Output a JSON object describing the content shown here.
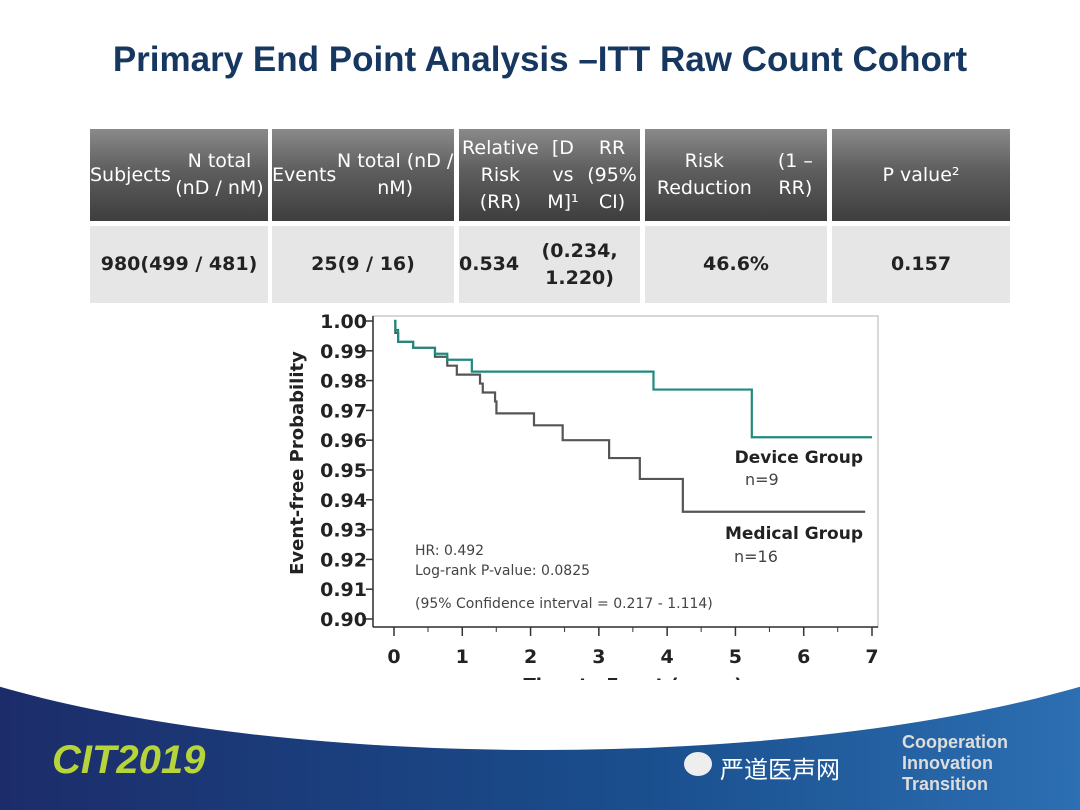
{
  "title": "Primary End Point Analysis –ITT Raw Count Cohort",
  "table": {
    "headers": [
      [
        "Subjects",
        "N total (nD / nM)"
      ],
      [
        "Events",
        "N total (nD / nM)"
      ],
      [
        "Relative Risk (RR)",
        "[D vs M]¹",
        "RR (95% CI)"
      ],
      [
        "Risk Reduction",
        "(1 – RR)"
      ],
      [
        "P value²"
      ]
    ],
    "row": [
      [
        "980",
        "(499 / 481)"
      ],
      [
        "25",
        "(9 / 16)"
      ],
      [
        "0.534",
        "(0.234, 1.220)"
      ],
      [
        "46.6%"
      ],
      [
        "0.157"
      ]
    ]
  },
  "chart_data": {
    "type": "line",
    "title": "",
    "xlabel": "Time to Event (years)",
    "ylabel": "Event-free Probability",
    "xlim": [
      0,
      7
    ],
    "ylim": [
      0.9,
      1.0
    ],
    "xticks": [
      "0",
      "1",
      "2",
      "3",
      "4",
      "5",
      "6",
      "7"
    ],
    "yticks": [
      "1.00",
      "0.99",
      "0.98",
      "0.97",
      "0.96",
      "0.95",
      "0.94",
      "0.93",
      "0.92",
      "0.91",
      "0.90"
    ],
    "series": [
      {
        "name": "Device Group",
        "n_label": "n=9",
        "color": "#1f8a7c",
        "steps": [
          [
            0,
            1.0
          ],
          [
            0.02,
            0.997
          ],
          [
            0.06,
            0.993
          ],
          [
            0.28,
            0.991
          ],
          [
            0.6,
            0.989
          ],
          [
            0.78,
            0.987
          ],
          [
            1.14,
            0.983
          ],
          [
            3.8,
            0.977
          ],
          [
            5.24,
            0.961
          ],
          [
            7.0,
            0.961
          ]
        ]
      },
      {
        "name": "Medical Group",
        "n_label": "n=16",
        "color": "#555555",
        "steps": [
          [
            0,
            1.0
          ],
          [
            0.02,
            0.996
          ],
          [
            0.06,
            0.993
          ],
          [
            0.28,
            0.991
          ],
          [
            0.6,
            0.988
          ],
          [
            0.78,
            0.985
          ],
          [
            0.92,
            0.982
          ],
          [
            1.26,
            0.979
          ],
          [
            1.3,
            0.976
          ],
          [
            1.48,
            0.973
          ],
          [
            1.5,
            0.969
          ],
          [
            2.05,
            0.965
          ],
          [
            2.47,
            0.96
          ],
          [
            3.15,
            0.954
          ],
          [
            3.6,
            0.947
          ],
          [
            4.23,
            0.936
          ],
          [
            6.9,
            0.936
          ]
        ]
      }
    ],
    "annotations": [
      "HR: 0.492",
      "Log-rank P-value: 0.0825",
      "(95% Confidence interval = 0.217 - 1.114)"
    ]
  },
  "footer": {
    "logo": "CIT2019",
    "tagline": [
      "Cooperation",
      "Innovation",
      "Transition"
    ],
    "watermark": "严道医声网"
  }
}
